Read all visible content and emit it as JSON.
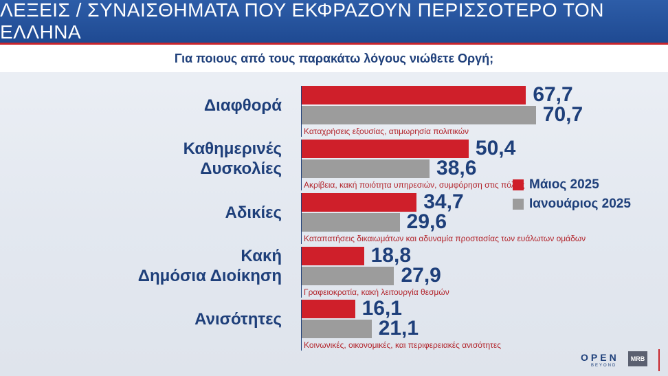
{
  "header": {
    "title": "ΛΕΞΕΙΣ / ΣΥΝΑΙΣΘΗΜΑΤΑ ΠΟΥ ΕΚΦΡΑΖΟΥΝ ΠΕΡΙΣΣΟΤΕΡΟ ΤΟΝ ΕΛΛΗΝΑ"
  },
  "question": "Για ποιους από τους παρακάτω λόγους νιώθετε Οργή;",
  "legend": {
    "may": "Μάιος 2025",
    "jan": "Ιανουάριος 2025"
  },
  "colors": {
    "may": "#cf1f2a",
    "jan": "#9c9c9c",
    "text": "#1e3f7a",
    "note": "#b2242b"
  },
  "logos": {
    "open": "OPEN",
    "beyond": "BEYOND",
    "mrb": "MRB"
  },
  "chart_data": {
    "type": "bar",
    "orientation": "horizontal",
    "title": "ΛΕΞΕΙΣ / ΣΥΝΑΙΣΘΗΜΑΤΑ ΠΟΥ ΕΚΦΡΑΖΟΥΝ ΠΕΡΙΣΣΟΤΕΡΟ ΤΟΝ ΕΛΛΗΝΑ",
    "subtitle": "Για ποιους από τους παρακάτω λόγους νιώθετε Οργή;",
    "categories": [
      [
        "Διαφθορά"
      ],
      [
        "Καθημερινές",
        "Δυσκολίες"
      ],
      [
        "Αδικίες"
      ],
      [
        "Κακή",
        "Δημόσια Διοίκηση"
      ],
      [
        "Ανισότητες"
      ]
    ],
    "notes": [
      "Καταχρήσεις εξουσίας, ατιμωρησία πολιτικών",
      "Ακρίβεια, κακή ποιότητα υπηρεσιών, συμφόρηση στις πόλεις",
      "Καταπατήσεις δικαιωμάτων και αδυναμία προστασίας των ευάλωτων ομάδων",
      "Γραφειοκρατία, κακή λειτουργία θεσμών",
      "Κοινωνικές, οικονομικές, και περιφερειακές ανισότητες"
    ],
    "series": [
      {
        "name": "Μάιος 2025",
        "values": [
          "67,7",
          "50,4",
          "34,7",
          "18,8",
          "16,1"
        ]
      },
      {
        "name": "Ιανουάριος 2025",
        "values": [
          "70,7",
          "38,6",
          "29,6",
          "27,9",
          "21,1"
        ]
      }
    ],
    "xlim": [
      0,
      100
    ],
    "grid": false,
    "legend_position": "right"
  }
}
